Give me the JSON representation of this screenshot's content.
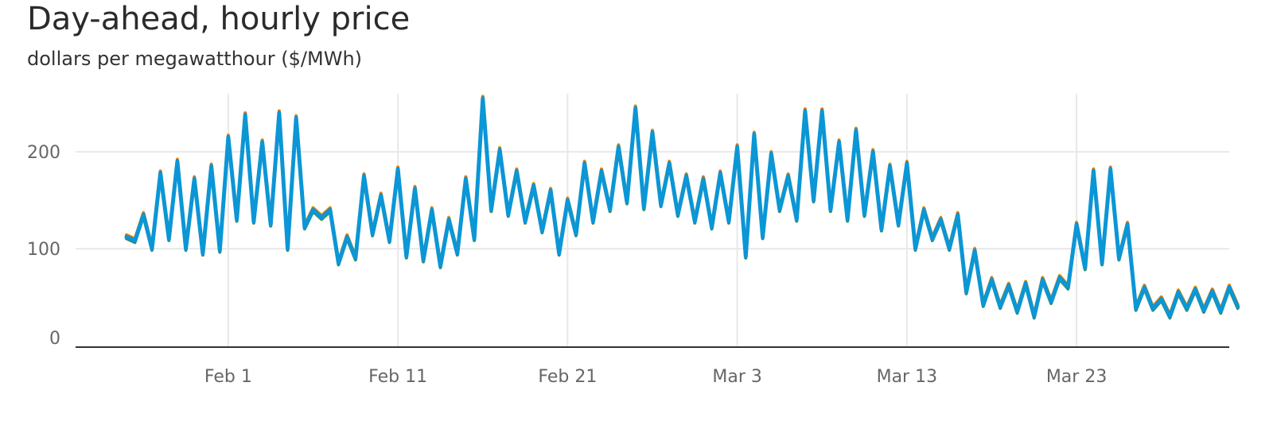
{
  "chart_data": {
    "type": "line",
    "title": "Day-ahead, hourly price",
    "subtitle": "dollars per megawatthour ($/MWh)",
    "xlabel": "",
    "ylabel": "",
    "x_range": [
      "2023-01-23",
      "2023-04-01"
    ],
    "ylim": [
      0,
      260
    ],
    "y_ticks": [
      0,
      100,
      200
    ],
    "x_ticks": [
      {
        "date": "2023-02-01",
        "label": "Feb 1"
      },
      {
        "date": "2023-02-11",
        "label": "Feb 11"
      },
      {
        "date": "2023-02-21",
        "label": "Feb 21"
      },
      {
        "date": "2023-03-03",
        "label": "Mar 3"
      },
      {
        "date": "2023-03-13",
        "label": "Mar 13"
      },
      {
        "date": "2023-03-23",
        "label": "Mar 23"
      }
    ],
    "grid": true,
    "legend": "none",
    "series_colors": [
      "#f2b31d",
      "#e0712b",
      "#5b9e35",
      "#6e6e6e",
      "#1f6e93",
      "#0b96d6"
    ],
    "series": [
      {
        "values": [
          [
            "2023-01-26",
            112
          ],
          [
            "2023-01-26T12",
            108
          ],
          [
            "2023-01-27",
            135
          ],
          [
            "2023-01-27T12",
            100
          ],
          [
            "2023-01-28",
            178
          ],
          [
            "2023-01-28T12",
            110
          ],
          [
            "2023-01-29",
            190
          ],
          [
            "2023-01-29T12",
            100
          ],
          [
            "2023-01-30",
            172
          ],
          [
            "2023-01-30T12",
            95
          ],
          [
            "2023-01-31",
            185
          ],
          [
            "2023-01-31T12",
            98
          ],
          [
            "2023-02-01",
            215
          ],
          [
            "2023-02-01T12",
            130
          ],
          [
            "2023-02-02",
            238
          ],
          [
            "2023-02-02T12",
            128
          ],
          [
            "2023-02-03",
            210
          ],
          [
            "2023-02-03T12",
            125
          ],
          [
            "2023-02-04",
            240
          ],
          [
            "2023-02-04T12",
            100
          ],
          [
            "2023-02-05",
            235
          ],
          [
            "2023-02-05T12",
            122
          ],
          [
            "2023-02-06",
            140
          ],
          [
            "2023-02-06T12",
            132
          ],
          [
            "2023-02-07",
            140
          ],
          [
            "2023-02-07T12",
            85
          ],
          [
            "2023-02-08",
            112
          ],
          [
            "2023-02-08T12",
            90
          ],
          [
            "2023-02-09",
            175
          ],
          [
            "2023-02-09T12",
            115
          ],
          [
            "2023-02-10",
            155
          ],
          [
            "2023-02-10T12",
            108
          ],
          [
            "2023-02-11",
            182
          ],
          [
            "2023-02-11T12",
            92
          ],
          [
            "2023-02-12",
            162
          ],
          [
            "2023-02-12T12",
            88
          ],
          [
            "2023-02-13",
            140
          ],
          [
            "2023-02-13T12",
            82
          ],
          [
            "2023-02-14",
            130
          ],
          [
            "2023-02-14T12",
            95
          ],
          [
            "2023-02-15",
            172
          ],
          [
            "2023-02-15T12",
            110
          ],
          [
            "2023-02-16",
            255
          ],
          [
            "2023-02-16T12",
            140
          ],
          [
            "2023-02-17",
            202
          ],
          [
            "2023-02-17T12",
            135
          ],
          [
            "2023-02-18",
            180
          ],
          [
            "2023-02-18T12",
            128
          ],
          [
            "2023-02-19",
            165
          ],
          [
            "2023-02-19T12",
            118
          ],
          [
            "2023-02-20",
            160
          ],
          [
            "2023-02-20T12",
            95
          ],
          [
            "2023-02-21",
            150
          ],
          [
            "2023-02-21T12",
            115
          ],
          [
            "2023-02-22",
            188
          ],
          [
            "2023-02-22T12",
            128
          ],
          [
            "2023-02-23",
            180
          ],
          [
            "2023-02-23T12",
            140
          ],
          [
            "2023-02-24",
            205
          ],
          [
            "2023-02-24T12",
            148
          ],
          [
            "2023-02-25",
            245
          ],
          [
            "2023-02-25T12",
            142
          ],
          [
            "2023-02-26",
            220
          ],
          [
            "2023-02-26T12",
            145
          ],
          [
            "2023-02-27",
            188
          ],
          [
            "2023-02-27T12",
            135
          ],
          [
            "2023-02-28",
            175
          ],
          [
            "2023-02-28T12",
            128
          ],
          [
            "2023-03-01",
            172
          ],
          [
            "2023-03-01T12",
            122
          ],
          [
            "2023-03-02",
            178
          ],
          [
            "2023-03-02T12",
            128
          ],
          [
            "2023-03-03",
            205
          ],
          [
            "2023-03-03T12",
            92
          ],
          [
            "2023-03-04",
            218
          ],
          [
            "2023-03-04T12",
            112
          ],
          [
            "2023-03-05",
            198
          ],
          [
            "2023-03-05T12",
            140
          ],
          [
            "2023-03-06",
            175
          ],
          [
            "2023-03-06T12",
            130
          ],
          [
            "2023-03-07",
            242
          ],
          [
            "2023-03-07T12",
            150
          ],
          [
            "2023-03-08",
            242
          ],
          [
            "2023-03-08T12",
            140
          ],
          [
            "2023-03-09",
            210
          ],
          [
            "2023-03-09T12",
            130
          ],
          [
            "2023-03-10",
            222
          ],
          [
            "2023-03-10T12",
            135
          ],
          [
            "2023-03-11",
            200
          ],
          [
            "2023-03-11T12",
            120
          ],
          [
            "2023-03-12",
            185
          ],
          [
            "2023-03-12T12",
            125
          ],
          [
            "2023-03-13",
            188
          ],
          [
            "2023-03-13T12",
            100
          ],
          [
            "2023-03-14",
            140
          ],
          [
            "2023-03-14T12",
            110
          ],
          [
            "2023-03-15",
            130
          ],
          [
            "2023-03-15T12",
            100
          ],
          [
            "2023-03-16",
            135
          ],
          [
            "2023-03-16T12",
            55
          ],
          [
            "2023-03-17",
            98
          ],
          [
            "2023-03-17T12",
            42
          ],
          [
            "2023-03-18",
            68
          ],
          [
            "2023-03-18T12",
            40
          ],
          [
            "2023-03-19",
            62
          ],
          [
            "2023-03-19T12",
            35
          ],
          [
            "2023-03-20",
            64
          ],
          [
            "2023-03-20T12",
            30
          ],
          [
            "2023-03-21",
            68
          ],
          [
            "2023-03-21T12",
            45
          ],
          [
            "2023-03-22",
            70
          ],
          [
            "2023-03-22T12",
            60
          ],
          [
            "2023-03-23",
            125
          ],
          [
            "2023-03-23T12",
            80
          ],
          [
            "2023-03-24",
            180
          ],
          [
            "2023-03-24T12",
            85
          ],
          [
            "2023-03-25",
            182
          ],
          [
            "2023-03-25T12",
            90
          ],
          [
            "2023-03-26",
            125
          ],
          [
            "2023-03-26T12",
            38
          ],
          [
            "2023-03-27",
            60
          ],
          [
            "2023-03-27T12",
            38
          ],
          [
            "2023-03-28",
            48
          ],
          [
            "2023-03-28T12",
            30
          ],
          [
            "2023-03-29",
            55
          ],
          [
            "2023-03-29T12",
            38
          ],
          [
            "2023-03-30",
            58
          ],
          [
            "2023-03-30T12",
            36
          ],
          [
            "2023-03-31",
            56
          ],
          [
            "2023-03-31T12",
            35
          ],
          [
            "2023-04-01",
            60
          ],
          [
            "2023-04-01T12",
            40
          ]
        ]
      }
    ]
  }
}
